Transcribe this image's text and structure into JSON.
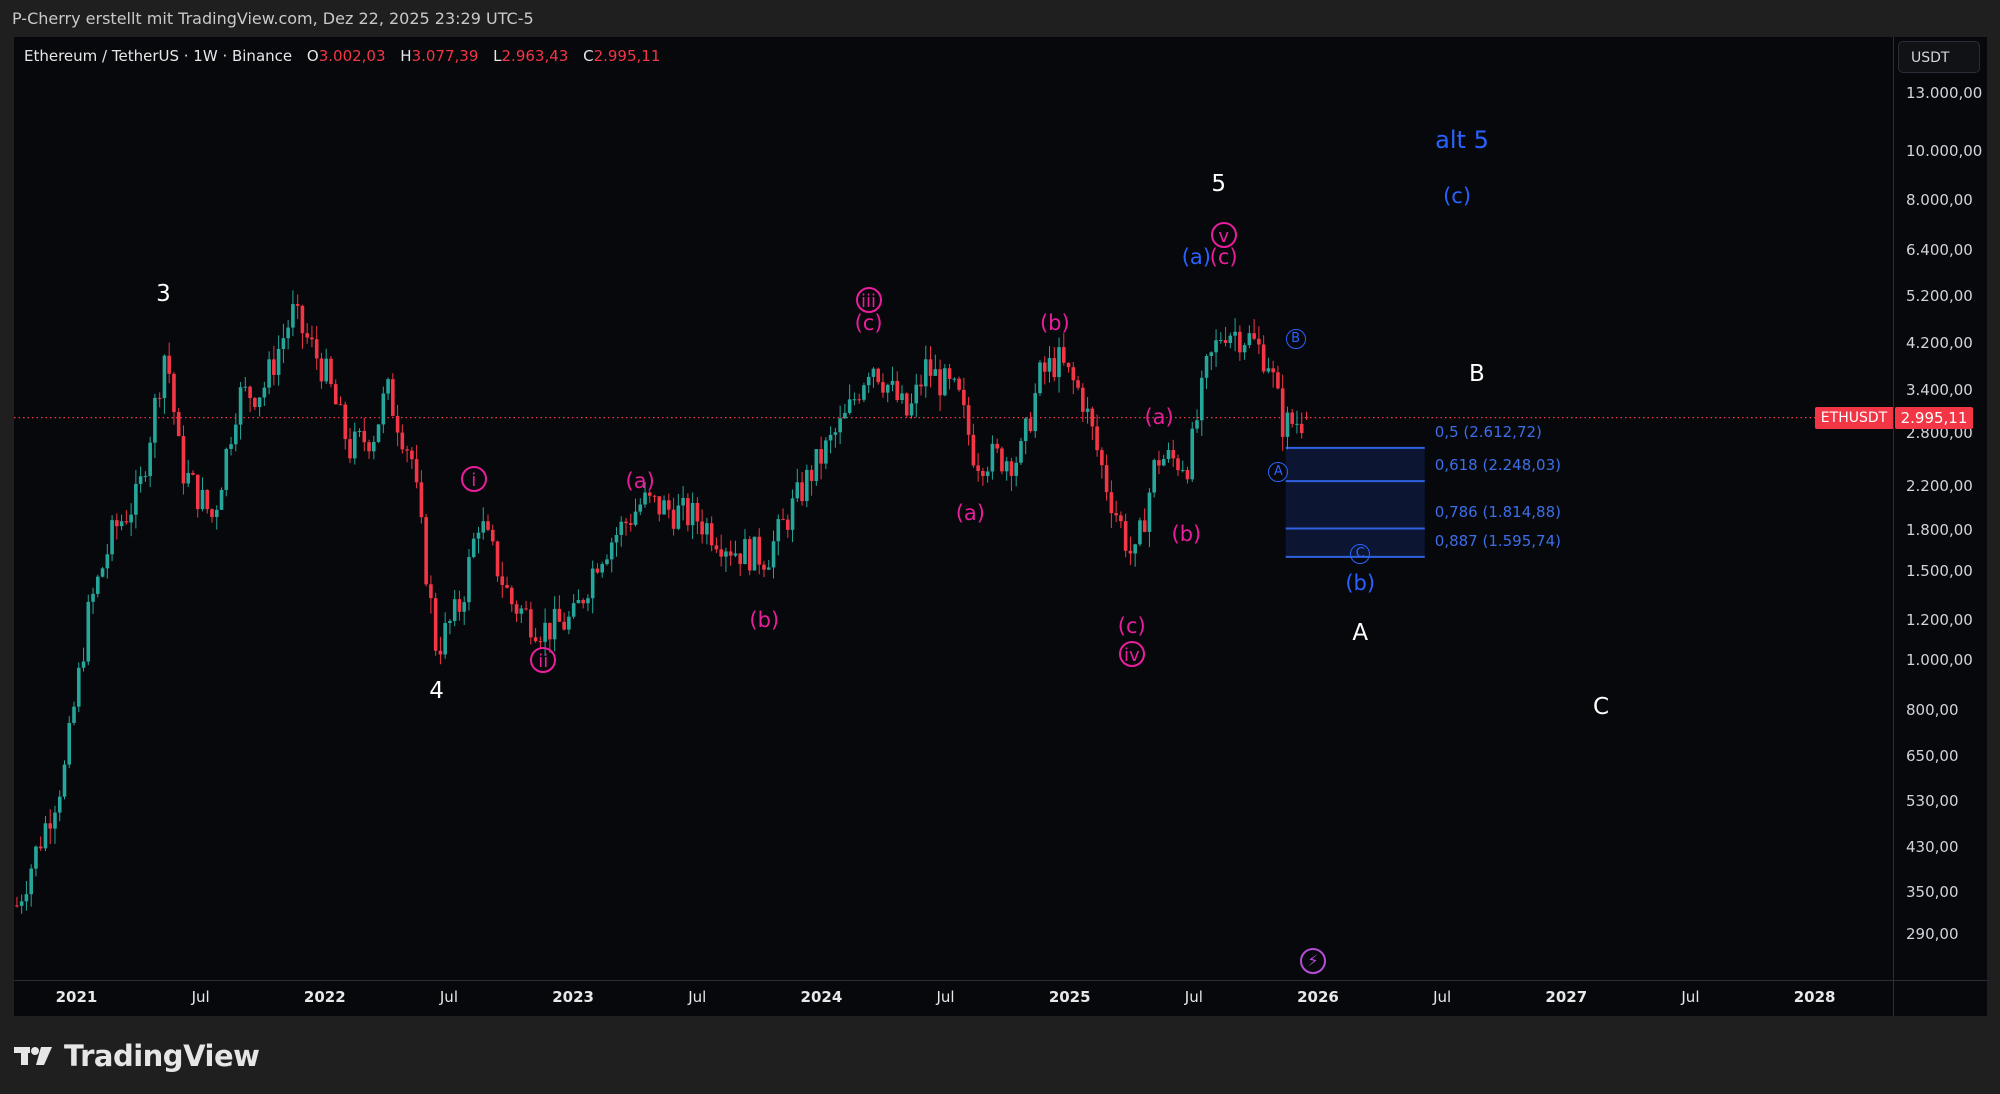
{
  "attribution": "P-Cherry erstellt mit TradingView.com, Dez 22, 2025 23:29 UTC-5",
  "legend": {
    "symbol": "Ethereum / TetherUS · 1W · Binance",
    "open_label": "O",
    "open": "3.002,03",
    "high_label": "H",
    "high": "3.077,39",
    "low_label": "L",
    "low": "2.963,43",
    "close_label": "C",
    "close": "2.995,11"
  },
  "price_axis": {
    "currency": "USDT",
    "ticks": [
      "13.000,00",
      "10.000,00",
      "8.000,00",
      "6.400,00",
      "5.200,00",
      "4.200,00",
      "3.400,00",
      "2.800,00",
      "2.200,00",
      "1.800,00",
      "1.500,00",
      "1.200,00",
      "1.000,00",
      "800,00",
      "650,00",
      "530,00",
      "430,00",
      "350,00",
      "290,00"
    ],
    "tick_values": [
      13000,
      10000,
      8000,
      6400,
      5200,
      4200,
      3400,
      2800,
      2200,
      1800,
      1500,
      1200,
      1000,
      800,
      650,
      530,
      430,
      350,
      290
    ]
  },
  "time_axis": {
    "ticks": [
      {
        "label": "2021",
        "t": 2021.0,
        "year": true
      },
      {
        "label": "Jul",
        "t": 2021.5,
        "year": false
      },
      {
        "label": "2022",
        "t": 2022.0,
        "year": true
      },
      {
        "label": "Jul",
        "t": 2022.5,
        "year": false
      },
      {
        "label": "2023",
        "t": 2023.0,
        "year": true
      },
      {
        "label": "Jul",
        "t": 2023.5,
        "year": false
      },
      {
        "label": "2024",
        "t": 2024.0,
        "year": true
      },
      {
        "label": "Jul",
        "t": 2024.5,
        "year": false
      },
      {
        "label": "2025",
        "t": 2025.0,
        "year": true
      },
      {
        "label": "Jul",
        "t": 2025.5,
        "year": false
      },
      {
        "label": "2026",
        "t": 2026.0,
        "year": true
      },
      {
        "label": "Jul",
        "t": 2026.5,
        "year": false
      },
      {
        "label": "2027",
        "t": 2027.0,
        "year": true
      },
      {
        "label": "Jul",
        "t": 2027.5,
        "year": false
      },
      {
        "label": "2028",
        "t": 2028.0,
        "year": true
      }
    ]
  },
  "last_price": {
    "symbol": "ETHUSDT",
    "value": "2.995,11",
    "numeric": 2995.11
  },
  "colors": {
    "up": "#26a69a",
    "down": "#f23645",
    "magenta": "#e91e9b",
    "blue": "#2962ff",
    "white": "#ffffff",
    "fib": "#3d6ee8"
  },
  "waves": [
    {
      "text": "3",
      "t": 2021.35,
      "p": 5250,
      "style": "white",
      "circle": false
    },
    {
      "text": "4",
      "t": 2022.45,
      "p": 870,
      "style": "white",
      "circle": false
    },
    {
      "text": "5",
      "t": 2025.6,
      "p": 8600,
      "style": "white",
      "circle": false
    },
    {
      "text": "i",
      "t": 2022.6,
      "p": 2270,
      "style": "magenta",
      "circle": true
    },
    {
      "text": "ii",
      "t": 2022.88,
      "p": 1000,
      "style": "magenta",
      "circle": true
    },
    {
      "text": "(a)",
      "t": 2023.27,
      "p": 2250,
      "style": "magenta",
      "circle": false
    },
    {
      "text": "(b)",
      "t": 2023.77,
      "p": 1200,
      "style": "magenta",
      "circle": false
    },
    {
      "text": "iii",
      "t": 2024.19,
      "p": 5100,
      "style": "magenta",
      "circle": true
    },
    {
      "text": "(c)",
      "t": 2024.19,
      "p": 4600,
      "style": "magenta",
      "circle": false
    },
    {
      "text": "(a)",
      "t": 2024.6,
      "p": 1950,
      "style": "magenta",
      "circle": false
    },
    {
      "text": "(b)",
      "t": 2024.94,
      "p": 4600,
      "style": "magenta",
      "circle": false
    },
    {
      "text": "(c)",
      "t": 2025.25,
      "p": 1170,
      "style": "magenta",
      "circle": false
    },
    {
      "text": "iv",
      "t": 2025.25,
      "p": 1030,
      "style": "magenta",
      "circle": true
    },
    {
      "text": "(a)",
      "t": 2025.36,
      "p": 3000,
      "style": "magenta",
      "circle": false
    },
    {
      "text": "(b)",
      "t": 2025.47,
      "p": 1770,
      "style": "magenta",
      "circle": false
    },
    {
      "text": "v",
      "t": 2025.62,
      "p": 6850,
      "style": "magenta",
      "circle": true
    },
    {
      "text": "(c)",
      "t": 2025.62,
      "p": 6200,
      "style": "magenta",
      "circle": false
    },
    {
      "text": "(a)",
      "t": 2025.51,
      "p": 6200,
      "style": "blue",
      "circle": false
    },
    {
      "text": "B",
      "t": 2025.91,
      "p": 4280,
      "style": "blue",
      "circle": true,
      "small": true
    },
    {
      "text": "A",
      "t": 2025.84,
      "p": 2340,
      "style": "blue",
      "circle": true,
      "small": true
    },
    {
      "text": "C",
      "t": 2026.17,
      "p": 1620,
      "style": "blue",
      "circle": true,
      "small": true
    },
    {
      "text": "(b)",
      "t": 2026.17,
      "p": 1420,
      "style": "blue",
      "circle": false
    },
    {
      "text": "alt 5",
      "t": 2026.58,
      "p": 10500,
      "style": "blue",
      "circle": false,
      "big": true
    },
    {
      "text": "(c)",
      "t": 2026.56,
      "p": 8150,
      "style": "blue",
      "circle": false
    },
    {
      "text": "B",
      "t": 2026.64,
      "p": 3650,
      "style": "white",
      "circle": false
    },
    {
      "text": "A",
      "t": 2026.17,
      "p": 1130,
      "style": "white",
      "circle": false
    },
    {
      "text": "C",
      "t": 2027.14,
      "p": 810,
      "style": "white",
      "circle": false
    }
  ],
  "fib_box": {
    "t_start": 2025.87,
    "t_end": 2026.43
  },
  "fib_levels": [
    {
      "label": "0,5 (2.612,72)",
      "ratio": "0,5",
      "price": 2612.72
    },
    {
      "label": "0,618 (2.248,03)",
      "ratio": "0,618",
      "price": 2248.03
    },
    {
      "label": "0,786 (1.814,88)",
      "ratio": "0,786",
      "price": 1814.88
    },
    {
      "label": "0,887 (1.595,74)",
      "ratio": "0,887",
      "price": 1595.74
    }
  ],
  "brand": "TradingView",
  "chart_data": {
    "type": "candlestick",
    "title": "Ethereum / TetherUS · 1W · Binance",
    "xlabel": "",
    "ylabel": "USDT",
    "yscale": "log",
    "ylim": [
      260,
      15000
    ],
    "xlim": [
      "2020-10",
      "2028-05"
    ],
    "grid": false,
    "last": {
      "open": 3002.03,
      "high": 3077.39,
      "low": 2963.43,
      "close": 2995.11
    },
    "anchor_path": [
      {
        "t": 2020.76,
        "p": 330
      },
      {
        "t": 2020.95,
        "p": 600
      },
      {
        "t": 2021.05,
        "p": 1250
      },
      {
        "t": 2021.15,
        "p": 1800
      },
      {
        "t": 2021.25,
        "p": 2100
      },
      {
        "t": 2021.36,
        "p": 4150
      },
      {
        "t": 2021.42,
        "p": 2400
      },
      {
        "t": 2021.55,
        "p": 1900
      },
      {
        "t": 2021.65,
        "p": 3300
      },
      {
        "t": 2021.75,
        "p": 3400
      },
      {
        "t": 2021.87,
        "p": 4800
      },
      {
        "t": 2022.0,
        "p": 3700
      },
      {
        "t": 2022.1,
        "p": 2600
      },
      {
        "t": 2022.2,
        "p": 2800
      },
      {
        "t": 2022.25,
        "p": 3400
      },
      {
        "t": 2022.35,
        "p": 2500
      },
      {
        "t": 2022.45,
        "p": 1050
      },
      {
        "t": 2022.55,
        "p": 1300
      },
      {
        "t": 2022.62,
        "p": 1900
      },
      {
        "t": 2022.75,
        "p": 1300
      },
      {
        "t": 2022.88,
        "p": 1150
      },
      {
        "t": 2023.0,
        "p": 1200
      },
      {
        "t": 2023.1,
        "p": 1600
      },
      {
        "t": 2023.28,
        "p": 2050
      },
      {
        "t": 2023.5,
        "p": 1900
      },
      {
        "t": 2023.65,
        "p": 1650
      },
      {
        "t": 2023.78,
        "p": 1600
      },
      {
        "t": 2023.95,
        "p": 2300
      },
      {
        "t": 2024.1,
        "p": 3000
      },
      {
        "t": 2024.2,
        "p": 3900
      },
      {
        "t": 2024.35,
        "p": 3000
      },
      {
        "t": 2024.42,
        "p": 3750
      },
      {
        "t": 2024.55,
        "p": 3300
      },
      {
        "t": 2024.62,
        "p": 2500
      },
      {
        "t": 2024.8,
        "p": 2500
      },
      {
        "t": 2024.88,
        "p": 3600
      },
      {
        "t": 2024.95,
        "p": 3900
      },
      {
        "t": 2025.05,
        "p": 3300
      },
      {
        "t": 2025.15,
        "p": 2200
      },
      {
        "t": 2025.26,
        "p": 1550
      },
      {
        "t": 2025.35,
        "p": 2500
      },
      {
        "t": 2025.48,
        "p": 2450
      },
      {
        "t": 2025.55,
        "p": 3700
      },
      {
        "t": 2025.62,
        "p": 4500
      },
      {
        "t": 2025.72,
        "p": 4300
      },
      {
        "t": 2025.8,
        "p": 3900
      },
      {
        "t": 2025.86,
        "p": 2900
      },
      {
        "t": 2025.97,
        "p": 2995
      }
    ]
  }
}
